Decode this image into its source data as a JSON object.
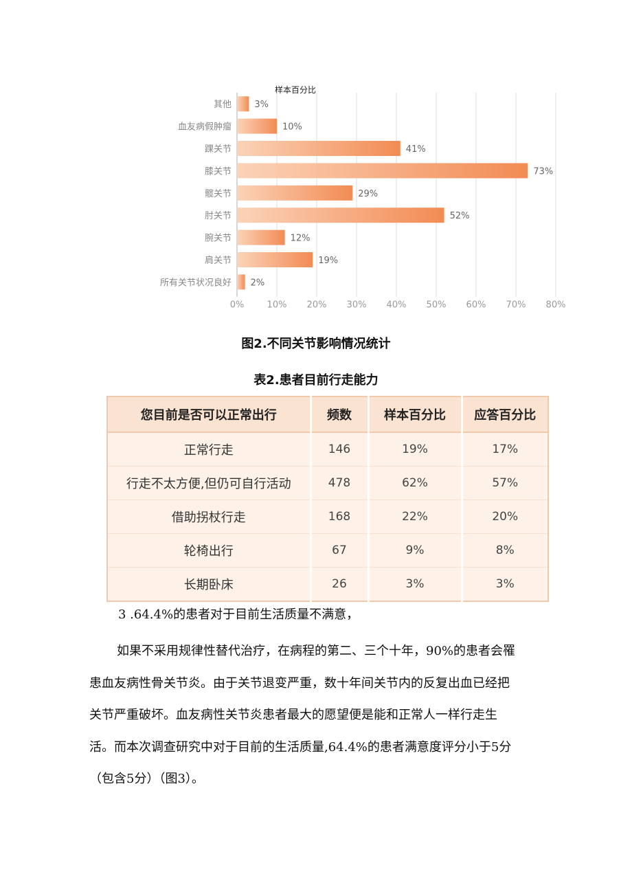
{
  "chart_data": {
    "type": "bar",
    "orientation": "horizontal",
    "title": "样本百分比",
    "categories": [
      "其他",
      "血友病假肿瘤",
      "踝关节",
      "膝关节",
      "髋关节",
      "肘关节",
      "腕关节",
      "肩关节",
      "所有关节状况良好"
    ],
    "values": [
      3,
      10,
      41,
      73,
      29,
      52,
      12,
      19,
      2
    ],
    "value_labels": [
      "3%",
      "10%",
      "41%",
      "73%",
      "29%",
      "52%",
      "12%",
      "19%",
      "2%"
    ],
    "xlim": [
      0,
      80
    ],
    "xticks": [
      0,
      10,
      20,
      30,
      40,
      50,
      60,
      70,
      80
    ],
    "xtick_labels": [
      "0%",
      "10%",
      "20%",
      "30%",
      "40%",
      "50%",
      "60%",
      "70%",
      "80%"
    ],
    "grid": "vertical",
    "bar_color_start": "#fbd3b8",
    "bar_color_end": "#f28b54"
  },
  "figure_caption": "图2.不同关节影响情况统计",
  "table_caption": "表2.患者目前行走能力",
  "table": {
    "headers": [
      "您目前是否可以正常出行",
      "频数",
      "样本百分比",
      "应答百分比"
    ],
    "rows": [
      [
        "正常行走",
        "146",
        "19%",
        "17%"
      ],
      [
        "行走不太方便,但仍可自行活动",
        "478",
        "62%",
        "57%"
      ],
      [
        "借助拐杖行走",
        "168",
        "22%",
        "20%"
      ],
      [
        "轮椅出行",
        "67",
        "9%",
        "8%"
      ],
      [
        "长期卧床",
        "26",
        "3%",
        "3%"
      ]
    ]
  },
  "section_heading": "3 .64.4%的患者对于目前生活质量不满意，",
  "paragraph_lines": [
    "如果不采用规律性替代治疗，在病程的第二、三个十年，90%的患者会罹",
    "患血友病性骨关节炎。由于关节退变严重，数十年间关节内的反复出血已经把",
    "关节严重破坏。血友病性关节炎患者最大的愿望便是能和正常人一样行走生",
    "活。而本次调查研究中对于目前的生活质量,64.4%的患者满意度评分小于5分",
    "（包含5分）（图3）。"
  ]
}
